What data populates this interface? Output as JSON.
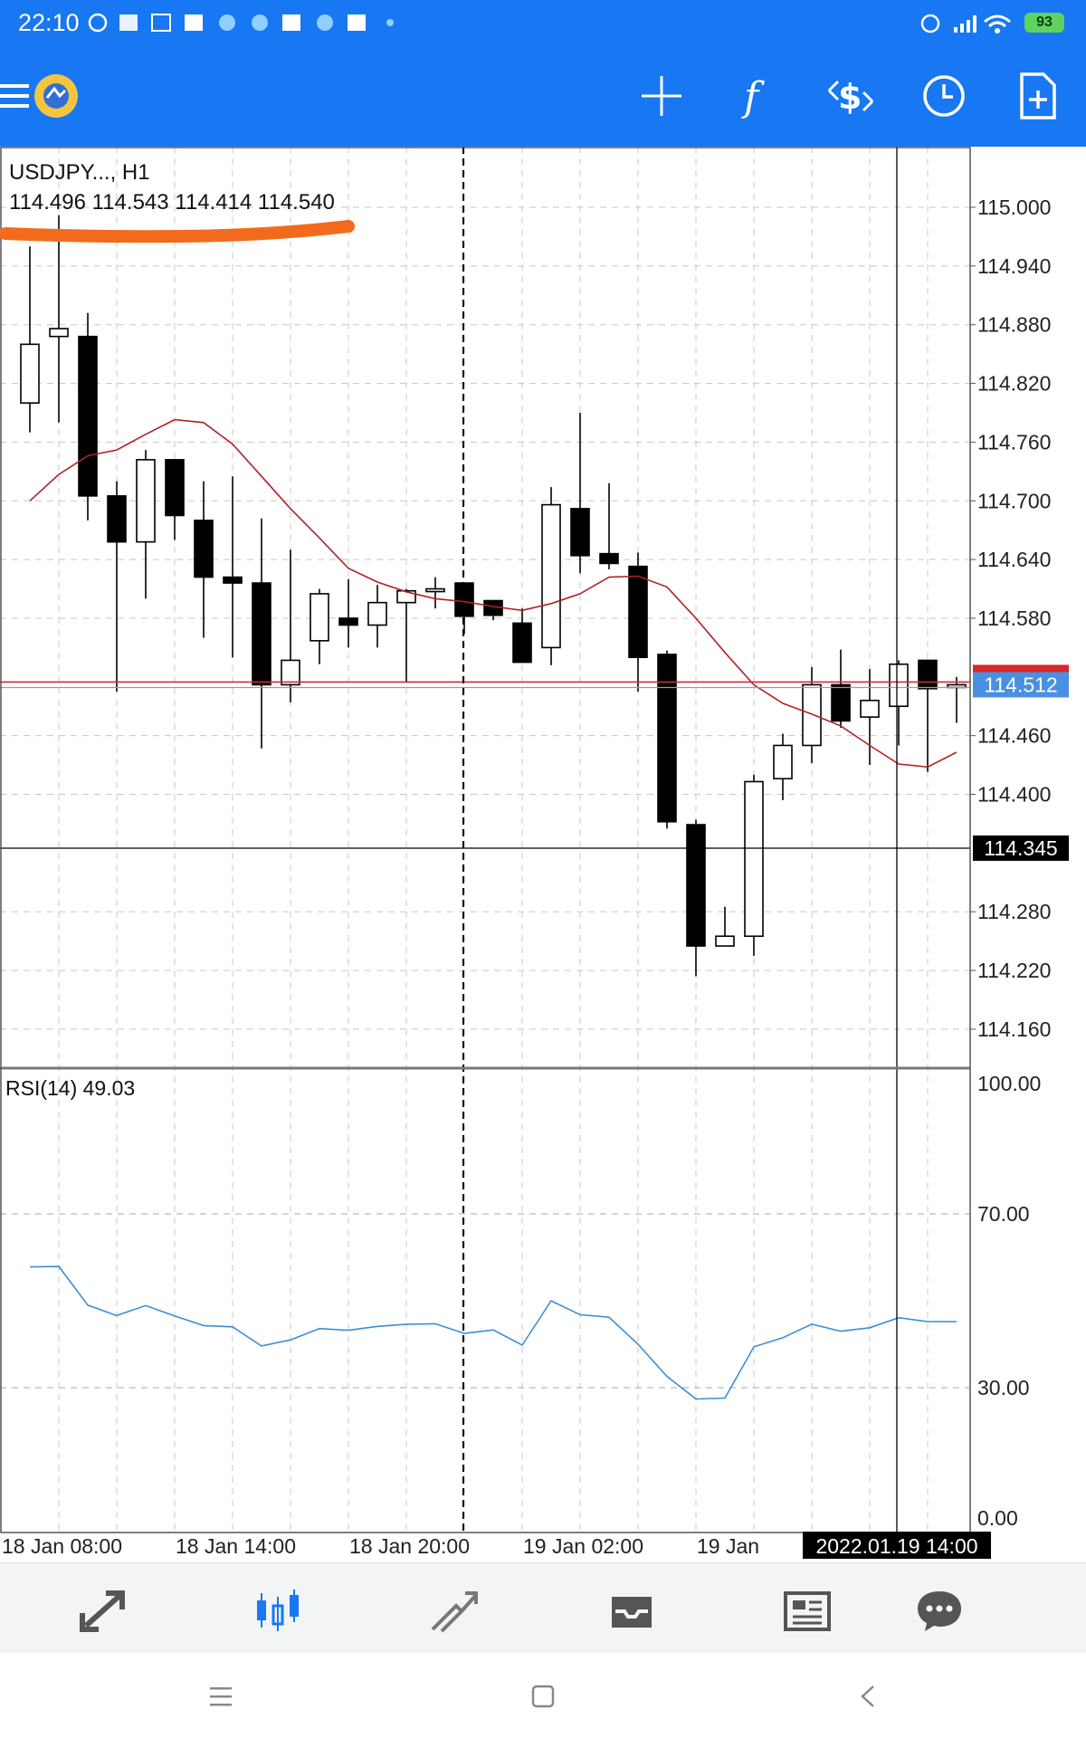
{
  "status_bar": {
    "time": "22:10",
    "battery": "93"
  },
  "colors": {
    "accent": "#1877f2",
    "bull_candle": "#ffffff",
    "bear_candle": "#000000",
    "ma_line": "#b22222",
    "rsi_line": "#3b8fd4",
    "bid_line": "#d62828",
    "ask_line": "#7aa6c9",
    "annotation": "#f26b1d"
  },
  "toolbar": {
    "icons": [
      "menu-icon",
      "app-logo",
      "crosshair-icon",
      "indicator-f-icon",
      "trade-dollar-icon",
      "clock-icon",
      "new-document-icon"
    ]
  },
  "chart": {
    "symbol_label": "USDJPY..., H1",
    "ohlc_label": "114.496 114.543 114.414 114.540",
    "bid_price_label": "114.512",
    "crosshair_price_label": "114.345",
    "crosshair_time_label": "2022.01.19 14:00",
    "rsi_label": "RSI(14) 49.03"
  },
  "chart_data": [
    {
      "type": "candlestick",
      "price_ticks": [
        "115.000",
        "114.940",
        "114.880",
        "114.820",
        "114.760",
        "114.700",
        "114.640",
        "114.580",
        "114.460",
        "114.400",
        "114.280",
        "114.220",
        "114.160"
      ],
      "ylim": [
        114.122,
        115.062
      ],
      "time_ticks": [
        "18 Jan 08:00",
        "18 Jan 14:00",
        "18 Jan 20:00",
        "19 Jan 02:00",
        "19 Jan"
      ],
      "candles": [
        {
          "o": 114.8,
          "h": 114.96,
          "l": 114.77,
          "c": 114.86
        },
        {
          "o": 114.868,
          "h": 114.992,
          "l": 114.78,
          "c": 114.876
        },
        {
          "o": 114.868,
          "h": 114.892,
          "l": 114.68,
          "c": 114.705
        },
        {
          "o": 114.705,
          "h": 114.72,
          "l": 114.505,
          "c": 114.658
        },
        {
          "o": 114.658,
          "h": 114.752,
          "l": 114.6,
          "c": 114.742
        },
        {
          "o": 114.742,
          "h": 114.742,
          "l": 114.66,
          "c": 114.685
        },
        {
          "o": 114.68,
          "h": 114.72,
          "l": 114.56,
          "c": 114.622
        },
        {
          "o": 114.622,
          "h": 114.725,
          "l": 114.54,
          "c": 114.616
        },
        {
          "o": 114.616,
          "h": 114.682,
          "l": 114.447,
          "c": 114.512
        },
        {
          "o": 114.512,
          "h": 114.65,
          "l": 114.494,
          "c": 114.537
        },
        {
          "o": 114.557,
          "h": 114.61,
          "l": 114.533,
          "c": 114.605
        },
        {
          "o": 114.58,
          "h": 114.62,
          "l": 114.55,
          "c": 114.573
        },
        {
          "o": 114.573,
          "h": 114.614,
          "l": 114.55,
          "c": 114.596
        },
        {
          "o": 114.596,
          "h": 114.61,
          "l": 114.515,
          "c": 114.608
        },
        {
          "o": 114.608,
          "h": 114.622,
          "l": 114.59,
          "c": 114.61
        },
        {
          "o": 114.616,
          "h": 114.616,
          "l": 114.564,
          "c": 114.582
        },
        {
          "o": 114.598,
          "h": 114.598,
          "l": 114.578,
          "c": 114.583
        },
        {
          "o": 114.575,
          "h": 114.59,
          "l": 114.535,
          "c": 114.535
        },
        {
          "o": 114.55,
          "h": 114.714,
          "l": 114.532,
          "c": 114.696
        },
        {
          "o": 114.692,
          "h": 114.79,
          "l": 114.626,
          "c": 114.644
        },
        {
          "o": 114.646,
          "h": 114.718,
          "l": 114.63,
          "c": 114.636
        },
        {
          "o": 114.633,
          "h": 114.647,
          "l": 114.505,
          "c": 114.54
        },
        {
          "o": 114.543,
          "h": 114.547,
          "l": 114.365,
          "c": 114.372
        },
        {
          "o": 114.369,
          "h": 114.374,
          "l": 114.214,
          "c": 114.245
        },
        {
          "o": 114.245,
          "h": 114.285,
          "l": 114.245,
          "c": 114.255
        },
        {
          "o": 114.255,
          "h": 114.42,
          "l": 114.235,
          "c": 114.413
        },
        {
          "o": 114.416,
          "h": 114.462,
          "l": 114.394,
          "c": 114.45
        },
        {
          "o": 114.45,
          "h": 114.53,
          "l": 114.432,
          "c": 114.512
        },
        {
          "o": 114.512,
          "h": 114.548,
          "l": 114.468,
          "c": 114.475
        },
        {
          "o": 114.479,
          "h": 114.528,
          "l": 114.43,
          "c": 114.496
        },
        {
          "o": 114.49,
          "h": 114.537,
          "l": 114.45,
          "c": 114.533
        },
        {
          "o": 114.537,
          "h": 114.537,
          "l": 114.423,
          "c": 114.508
        },
        {
          "o": 114.512,
          "h": 114.52,
          "l": 114.473,
          "c": 114.512
        }
      ],
      "moving_average": [
        114.7,
        114.727,
        114.746,
        114.752,
        114.768,
        114.783,
        114.78,
        114.758,
        114.725,
        114.692,
        114.662,
        114.631,
        114.617,
        114.607,
        114.6,
        114.597,
        114.592,
        114.588,
        114.595,
        114.605,
        114.622,
        114.623,
        114.612,
        114.58,
        114.545,
        114.512,
        114.493,
        114.482,
        114.47,
        114.45,
        114.431,
        114.428,
        114.443
      ],
      "bid": 114.512,
      "crosshair_price": 114.345
    },
    {
      "type": "line",
      "title": "RSI(14) 49.03",
      "levels": [
        "100.00",
        "70.00",
        "30.00",
        "0.00"
      ],
      "ylim": [
        0,
        100
      ],
      "values": [
        57.8,
        57.9,
        49.0,
        46.6,
        48.9,
        46.5,
        44.3,
        44.0,
        39.6,
        41.0,
        43.6,
        43.2,
        44.1,
        44.6,
        44.7,
        42.5,
        43.3,
        39.8,
        50.0,
        46.8,
        46.2,
        40.0,
        32.6,
        27.4,
        27.6,
        39.4,
        41.5,
        44.6,
        43.0,
        43.8,
        46.1,
        45.2,
        45.2
      ]
    }
  ],
  "bottom_nav": {
    "icons": [
      "quotes-arrows-icon",
      "chart-candles-icon",
      "trade-icon",
      "history-inbox-icon",
      "news-icon",
      "chat-icon"
    ]
  },
  "system_nav": {
    "icons": [
      "menu-lines-icon",
      "home-square-icon",
      "back-chevron-icon"
    ]
  }
}
